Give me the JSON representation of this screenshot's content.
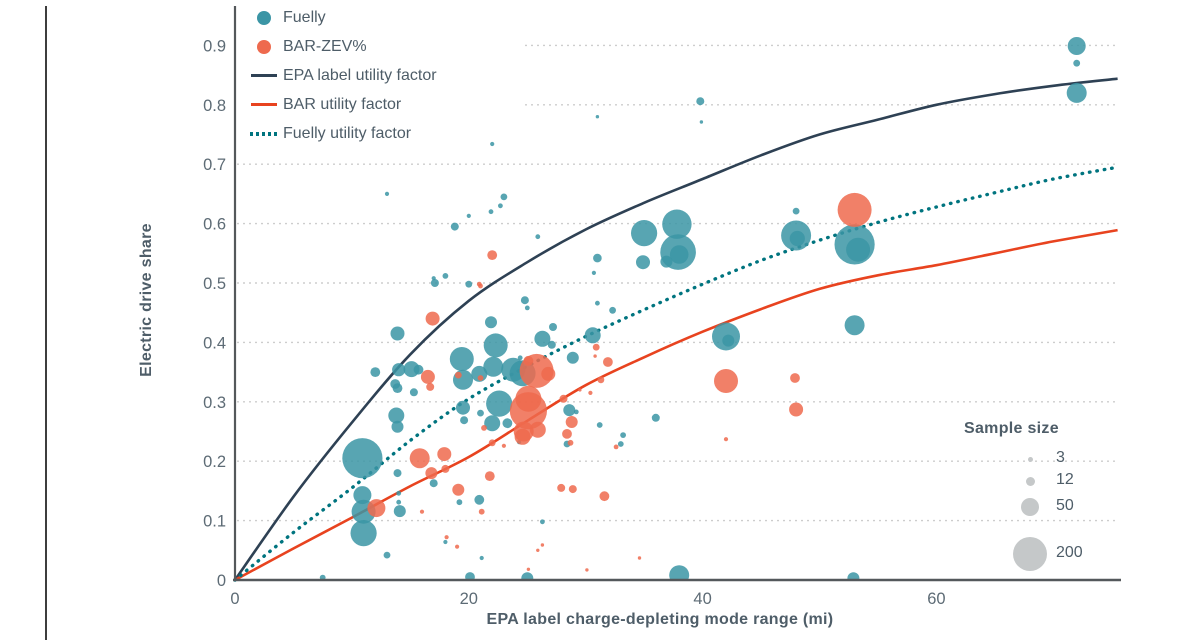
{
  "chart_data": {
    "type": "scatter",
    "title": "",
    "xlabel": "EPA label charge-depleting mode range (mi)",
    "ylabel": "Electric drive share",
    "xlim": [
      0,
      75.7
    ],
    "ylim": [
      0,
      0.97
    ],
    "xticks": [
      0,
      20,
      40,
      60
    ],
    "yticks": [
      0,
      0.1,
      0.2,
      0.3,
      0.4,
      0.5,
      0.6,
      0.7,
      0.8,
      0.9
    ],
    "grid": true,
    "legend_position": "top-left",
    "colors": {
      "fuelly_bubble": "#3b95a5",
      "bar_bubble": "#ee6a4e",
      "epa_line": "#2e4154",
      "bar_line": "#e8431f",
      "fuelly_line": "#00747f",
      "gridline": "#cdcdcd",
      "axis": "#54585b",
      "tick_text": "#5d6b75",
      "sample_circle": "#c5c8c9"
    },
    "legend": {
      "items": [
        {
          "label": "Fuelly",
          "type": "circle",
          "color": "#3b95a5"
        },
        {
          "label": "BAR-ZEV%",
          "type": "circle",
          "color": "#ee6a4e"
        },
        {
          "label": "EPA label utility factor",
          "type": "line",
          "color": "#2e4154"
        },
        {
          "label": "BAR utility factor",
          "type": "line",
          "color": "#e8431f"
        },
        {
          "label": "Fuelly utility factor",
          "type": "dotted-line",
          "color": "#00747f"
        }
      ]
    },
    "size_legend": {
      "title": "Sample size",
      "labels": [
        "3",
        "12",
        "50",
        "200"
      ],
      "sizes": [
        3,
        12,
        50,
        200
      ]
    },
    "series": [
      {
        "name": "Fuelly",
        "color": "#3b95a5",
        "points_format": [
          "range_mi",
          "electric_drive_share",
          "sample_size"
        ],
        "points": [
          [
            7.5,
            0.004,
            6
          ],
          [
            10.9,
            0.205,
            280
          ],
          [
            10.9,
            0.143,
            56
          ],
          [
            11,
            0.115,
            100
          ],
          [
            11,
            0.079,
            120
          ],
          [
            13,
            0.042,
            8
          ],
          [
            13,
            0.65,
            3
          ],
          [
            12,
            0.35,
            17
          ],
          [
            13.9,
            0.415,
            34
          ],
          [
            14,
            0.354,
            30
          ],
          [
            13.7,
            0.33,
            17
          ],
          [
            13.8,
            0.277,
            44
          ],
          [
            13.9,
            0.258,
            25
          ],
          [
            13.9,
            0.323,
            17
          ],
          [
            15.3,
            0.316,
            11
          ],
          [
            15.1,
            0.355,
            44
          ],
          [
            15.7,
            0.354,
            17
          ],
          [
            13.9,
            0.18,
            11
          ],
          [
            14,
            0.146,
            4
          ],
          [
            14,
            0.131,
            4
          ],
          [
            14.1,
            0.116,
            25
          ],
          [
            17,
            0.163,
            11
          ],
          [
            18,
            0.064,
            3
          ],
          [
            17.1,
            0.5,
            11
          ],
          [
            18,
            0.512,
            6
          ],
          [
            17,
            0.508,
            3
          ],
          [
            18.8,
            0.595,
            11
          ],
          [
            20,
            0.613,
            3
          ],
          [
            20.1,
            0.005,
            17
          ],
          [
            19.2,
            0.131,
            6
          ],
          [
            20.9,
            0.135,
            17
          ],
          [
            21.1,
            0.037,
            3
          ],
          [
            19.4,
            0.372,
            100
          ],
          [
            19.5,
            0.337,
            69
          ],
          [
            20.9,
            0.347,
            44
          ],
          [
            22.3,
            0.395,
            100
          ],
          [
            22.1,
            0.359,
            69
          ],
          [
            21.9,
            0.434,
            25
          ],
          [
            20,
            0.498,
            8
          ],
          [
            21.9,
            0.62,
            4
          ],
          [
            22.7,
            0.63,
            4
          ],
          [
            23,
            0.645,
            8
          ],
          [
            22,
            0.734,
            3
          ],
          [
            24.8,
            0.471,
            11
          ],
          [
            25,
            0.458,
            4
          ],
          [
            23.8,
            0.354,
            100
          ],
          [
            24.6,
            0.348,
            117
          ],
          [
            24.4,
            0.374,
            4
          ],
          [
            22,
            0.264,
            44
          ],
          [
            22.6,
            0.297,
            120
          ],
          [
            19.5,
            0.29,
            34
          ],
          [
            19.6,
            0.269,
            11
          ],
          [
            21,
            0.281,
            8
          ],
          [
            23.3,
            0.264,
            17
          ],
          [
            24.3,
            0.232,
            3
          ],
          [
            25,
            0.003,
            25
          ],
          [
            25.9,
            0.578,
            4
          ],
          [
            26.3,
            0.406,
            44
          ],
          [
            27.1,
            0.396,
            11
          ],
          [
            27.2,
            0.426,
            11
          ],
          [
            26.3,
            0.098,
            4
          ],
          [
            28.4,
            0.229,
            8
          ],
          [
            28.9,
            0.374,
            25
          ],
          [
            28.6,
            0.286,
            25
          ],
          [
            29.2,
            0.283,
            4
          ],
          [
            30.6,
            0.412,
            44
          ],
          [
            31,
            0.466,
            4
          ],
          [
            30.7,
            0.517,
            3
          ],
          [
            31,
            0.542,
            13
          ],
          [
            31,
            0.78,
            2
          ],
          [
            32.3,
            0.454,
            8
          ],
          [
            33.2,
            0.244,
            6
          ],
          [
            33,
            0.229,
            6
          ],
          [
            31.2,
            0.261,
            6
          ],
          [
            34.9,
            0.535,
            34
          ],
          [
            36.9,
            0.536,
            25
          ],
          [
            35,
            0.584,
            120
          ],
          [
            37.8,
            0.599,
            150
          ],
          [
            37.9,
            0.552,
            220
          ],
          [
            38,
            0.548,
            60
          ],
          [
            36,
            0.273,
            11
          ],
          [
            38,
            0.008,
            69
          ],
          [
            39.8,
            0.806,
            11
          ],
          [
            39.9,
            0.771,
            2
          ],
          [
            42,
            0.41,
            136
          ],
          [
            42.2,
            0.403,
            25
          ],
          [
            48,
            0.58,
            156
          ],
          [
            48.1,
            0.575,
            40
          ],
          [
            48,
            0.621,
            8
          ],
          [
            53,
            0.565,
            280
          ],
          [
            53.3,
            0.556,
            100
          ],
          [
            53,
            0.429,
            69
          ],
          [
            52.9,
            0.003,
            25
          ],
          [
            72,
            0.899,
            56
          ],
          [
            72,
            0.87,
            8
          ],
          [
            72,
            0.82,
            69
          ]
        ]
      },
      {
        "name": "BAR-ZEV%",
        "color": "#ee6a4e",
        "points_format": [
          "range_mi",
          "electric_drive_share",
          "sample_size"
        ],
        "points": [
          [
            12.1,
            0.121,
            56
          ],
          [
            15.8,
            0.205,
            69
          ],
          [
            16.8,
            0.18,
            25
          ],
          [
            16,
            0.115,
            3
          ],
          [
            17.9,
            0.212,
            34
          ],
          [
            18,
            0.187,
            11
          ],
          [
            19.1,
            0.152,
            25
          ],
          [
            18.1,
            0.072,
            3
          ],
          [
            19,
            0.056,
            3
          ],
          [
            16.9,
            0.44,
            34
          ],
          [
            16.5,
            0.342,
            34
          ],
          [
            16.7,
            0.325,
            11
          ],
          [
            19.1,
            0.345,
            8
          ],
          [
            21,
            0.34,
            6
          ],
          [
            20.9,
            0.498,
            4
          ],
          [
            21,
            0.495,
            4
          ],
          [
            22,
            0.547,
            17
          ],
          [
            21.8,
            0.175,
            17
          ],
          [
            21.1,
            0.115,
            6
          ],
          [
            22,
            0.231,
            8
          ],
          [
            23,
            0.226,
            3
          ],
          [
            21.3,
            0.256,
            6
          ],
          [
            25.1,
            0.369,
            17
          ],
          [
            25.8,
            0.352,
            200
          ],
          [
            25.1,
            0.305,
            117
          ],
          [
            25.1,
            0.285,
            240
          ],
          [
            24.7,
            0.25,
            69
          ],
          [
            25.9,
            0.253,
            44
          ],
          [
            24.6,
            0.241,
            44
          ],
          [
            26.8,
            0.347,
            34
          ],
          [
            28.1,
            0.305,
            11
          ],
          [
            28.8,
            0.266,
            25
          ],
          [
            28.4,
            0.246,
            17
          ],
          [
            30.9,
            0.392,
            8
          ],
          [
            31.9,
            0.367,
            17
          ],
          [
            31.3,
            0.337,
            8
          ],
          [
            30.4,
            0.315,
            3
          ],
          [
            29.5,
            0.32,
            2
          ],
          [
            30.8,
            0.377,
            2
          ],
          [
            27.9,
            0.155,
            11
          ],
          [
            28.9,
            0.153,
            11
          ],
          [
            31.6,
            0.141,
            17
          ],
          [
            28.7,
            0.231,
            6
          ],
          [
            32.6,
            0.224,
            4
          ],
          [
            26.3,
            0.059,
            2
          ],
          [
            25.1,
            0.018,
            2
          ],
          [
            25.9,
            0.05,
            2
          ],
          [
            34.6,
            0.037,
            2
          ],
          [
            30.1,
            0.017,
            2
          ],
          [
            42,
            0.335,
            100
          ],
          [
            42,
            0.237,
            3
          ],
          [
            48,
            0.287,
            34
          ],
          [
            47.9,
            0.34,
            17
          ],
          [
            53,
            0.623,
            200
          ]
        ]
      }
    ],
    "curves": [
      {
        "name": "EPA label utility factor",
        "style": "solid",
        "color": "#2e4154",
        "x": [
          0,
          5,
          10,
          15,
          20,
          25,
          30,
          35,
          40,
          45,
          50,
          55,
          60,
          65,
          70,
          75.5
        ],
        "y": [
          0,
          0.14,
          0.265,
          0.38,
          0.47,
          0.535,
          0.59,
          0.635,
          0.675,
          0.715,
          0.75,
          0.775,
          0.8,
          0.818,
          0.832,
          0.844
        ]
      },
      {
        "name": "BAR utility factor",
        "style": "solid",
        "color": "#e8431f",
        "x": [
          0,
          5,
          10,
          15,
          20,
          25,
          30,
          35,
          40,
          45,
          50,
          55,
          60,
          65,
          70,
          75.5
        ],
        "y": [
          0,
          0.053,
          0.105,
          0.158,
          0.207,
          0.268,
          0.328,
          0.375,
          0.418,
          0.456,
          0.49,
          0.513,
          0.53,
          0.55,
          0.57,
          0.589
        ]
      },
      {
        "name": "Fuelly utility factor",
        "style": "dotted",
        "color": "#00747f",
        "x": [
          0,
          5,
          10,
          15,
          20,
          25,
          30,
          35,
          40,
          45,
          50,
          55,
          60,
          65,
          70,
          75.5
        ],
        "y": [
          0,
          0.08,
          0.155,
          0.235,
          0.305,
          0.36,
          0.41,
          0.455,
          0.498,
          0.538,
          0.572,
          0.602,
          0.628,
          0.652,
          0.675,
          0.695
        ]
      }
    ]
  }
}
